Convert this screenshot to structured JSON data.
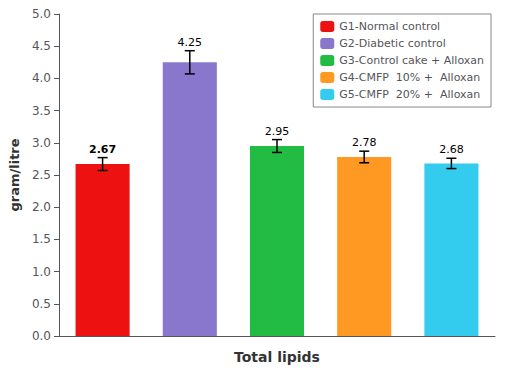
{
  "chart_data": {
    "type": "bar",
    "categories": [
      "G1-Normal control",
      "G2-Diabetic control",
      "G3-Control cake + Alloxan",
      "G4-CMFP  10% +  Alloxan",
      "G5-CMFP  20% +  Alloxan"
    ],
    "values": [
      2.67,
      4.25,
      2.95,
      2.78,
      2.68
    ],
    "errors": [
      0.1,
      0.18,
      0.1,
      0.09,
      0.08
    ],
    "colors": [
      "#ee1111",
      "#8877cc",
      "#22bb44",
      "#ff9922",
      "#33ccee"
    ],
    "xlabel": "Total lipids",
    "ylabel": "gram/litre",
    "ylim": [
      0,
      5
    ],
    "yticks": [
      {
        "value": 0,
        "label": "0.0"
      },
      {
        "value": 0.5,
        "label": "0.5"
      },
      {
        "value": 1.0,
        "label": "1.0"
      },
      {
        "value": 1.5,
        "label": "1.5"
      },
      {
        "value": 2.0,
        "label": "2.0"
      },
      {
        "value": 2.5,
        "label": "2.5"
      },
      {
        "value": 3.0,
        "label": "3.0"
      },
      {
        "value": 3.5,
        "label": "3.5"
      },
      {
        "value": 4.0,
        "label": "4.0"
      },
      {
        "value": 4.5,
        "label": "4.5"
      },
      {
        "value": 5.0,
        "label": "5.0"
      }
    ],
    "legend": "upper right",
    "data_labels": true,
    "tick_labels": "y",
    "grid": false
  }
}
